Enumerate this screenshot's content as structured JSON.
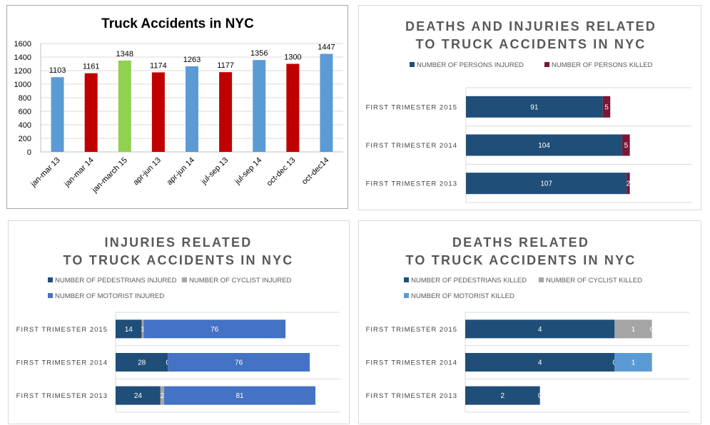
{
  "chart_data": [
    {
      "type": "bar",
      "title": "Truck Accidents in NYC",
      "categories": [
        "jan-mar 13",
        "jan-mar 14",
        "jan-march 15",
        "apr-jun 13",
        "apr-jun 14",
        "jul-sep 13",
        "jul-sep 14",
        "oct-dec 13",
        "oct-dec14"
      ],
      "values": [
        1103,
        1161,
        1348,
        1174,
        1263,
        1177,
        1356,
        1300,
        1447
      ],
      "bar_colors": [
        "#5b9bd5",
        "#c00000",
        "#92d050",
        "#c00000",
        "#5b9bd5",
        "#c00000",
        "#5b9bd5",
        "#c00000",
        "#5b9bd5"
      ],
      "ylim": [
        0,
        1600
      ],
      "yticks": [
        0,
        200,
        400,
        600,
        800,
        1000,
        1200,
        1400,
        1600
      ],
      "grid": true
    },
    {
      "type": "bar",
      "orientation": "horizontal-stacked",
      "title_lines": [
        "DEATHS AND INJURIES RELATED",
        "TO TRUCK ACCIDENTS IN NYC"
      ],
      "categories": [
        "FIRST TRIMESTER 2015",
        "FIRST TRIMESTER 2014",
        "FIRST TRIMESTER 2013"
      ],
      "series": [
        {
          "name": "NUMBER OF PERSONS INJURED",
          "color": "#1f4e79",
          "values": [
            91,
            104,
            107
          ]
        },
        {
          "name": "NUMBER OF PERSONS KILLED",
          "color": "#7b1633",
          "values": [
            5,
            5,
            2
          ]
        }
      ],
      "xlim": [
        0,
        150
      ],
      "legend": "top",
      "grid": true
    },
    {
      "type": "bar",
      "orientation": "horizontal-stacked",
      "title_lines": [
        "INJURIES RELATED",
        "TO TRUCK ACCIDENTS IN NYC"
      ],
      "categories": [
        "FIRST TRIMESTER 2015",
        "FIRST TRIMESTER 2014",
        "FIRST TRIMESTER 2013"
      ],
      "series": [
        {
          "name": "NUMBER OF PEDESTRIANS INJURED",
          "color": "#1f4e79",
          "values": [
            14,
            28,
            24
          ]
        },
        {
          "name": "NUMBER OF CYCLIST INJURED",
          "color": "#a5a5a5",
          "values": [
            1,
            0,
            2
          ]
        },
        {
          "name": "NUMBER OF MOTORIST INJURED",
          "color": "#4472c4",
          "values": [
            76,
            76,
            81
          ]
        }
      ],
      "xlim": [
        0,
        120
      ],
      "legend": "top",
      "grid": true
    },
    {
      "type": "bar",
      "orientation": "horizontal-stacked",
      "title_lines": [
        "DEATHS RELATED",
        "TO TRUCK ACCIDENTS IN NYC"
      ],
      "categories": [
        "FIRST TRIMESTER 2015",
        "FIRST TRIMESTER 2014",
        "FIRST TRIMESTER 2013"
      ],
      "series": [
        {
          "name": "NUMBER OF PEDESTRIANS KILLED",
          "color": "#1f4e79",
          "values": [
            4,
            4,
            2
          ]
        },
        {
          "name": "NUMBER OF CYCLIST KILLED",
          "color": "#a5a5a5",
          "values": [
            1,
            0,
            0
          ]
        },
        {
          "name": "NUMBER OF MOTORIST KILLED",
          "color": "#5b9bd5",
          "values": [
            0,
            1,
            null
          ]
        }
      ],
      "xlim": [
        0,
        6
      ],
      "legend": "top",
      "grid": true
    }
  ]
}
